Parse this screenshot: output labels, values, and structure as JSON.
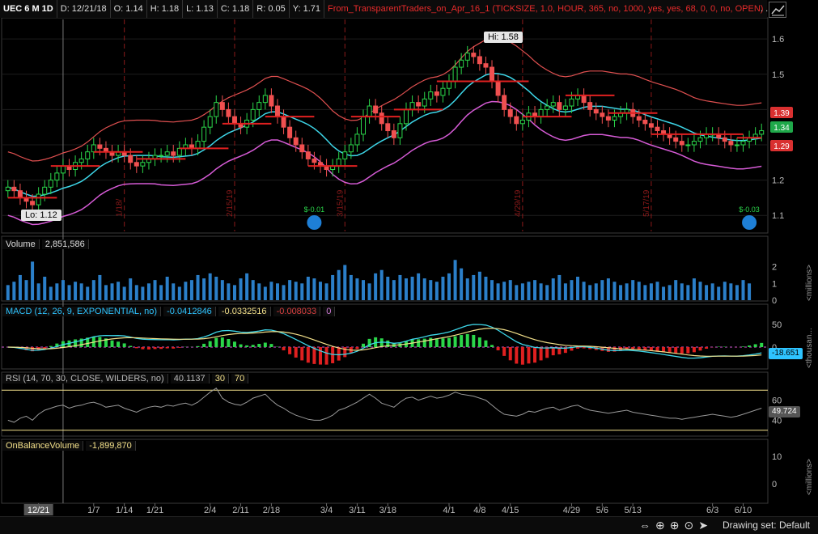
{
  "header": {
    "symbol": "UEC 6 M 1D",
    "date": "D: 12/21/18",
    "open": "O: 1.14",
    "high": "H: 1.18",
    "low": "L: 1.13",
    "close": "C: 1.18",
    "range": "R: 0.05",
    "y": "Y: 1.71",
    "strategy": "From_TransparentTraders_on_Apr_16_1 (TICKSIZE, 1.0, HOUR, 365, no, 1000, yes, yes, 68, 0, 0, no, OPEN)",
    "more": ". ."
  },
  "price_panel": {
    "hi_label": "Hi: 1.58",
    "lo_label": "Lo: 1.12",
    "price_ticks": [
      "1.6",
      "1.5",
      "1.4",
      "1.3",
      "1.2",
      "1.1"
    ],
    "badges": [
      {
        "text": "1.39",
        "color": "#d93030"
      },
      {
        "text": "1.34",
        "color": "#1fa84a"
      },
      {
        "text": "1.29",
        "color": "#d93030"
      }
    ],
    "vlines": [
      {
        "label": "1/18/",
        "idx": 19
      },
      {
        "label": "2/15/19",
        "idx": 37
      },
      {
        "label": "3/15/19",
        "idx": 55
      },
      {
        "label": "4/29/19",
        "idx": 84
      },
      {
        "label": "5/17/19",
        "idx": 105
      }
    ],
    "earnings": [
      {
        "text": "$-0.01",
        "idx": 50
      },
      {
        "text": "$-0.03",
        "idx": 121
      }
    ],
    "lo_date_mark": "18"
  },
  "volume_panel": {
    "title": "Volume",
    "value": "2,851,586",
    "ticks": [
      "2",
      "1",
      "0"
    ],
    "unit": "<millions>"
  },
  "macd_panel": {
    "title": "MACD (12, 26, 9, EXPONENTIAL, no)",
    "value": "-0.0412846",
    "avg": "-0.0332516",
    "diff": "-0.008033",
    "zero": "0",
    "ticks": [
      "50",
      "0"
    ],
    "badge": "-18.651",
    "unit": "<thousan..."
  },
  "rsi_panel": {
    "title": "RSI (14, 70, 30, CLOSE, WILDERS, no)",
    "value": "40.1137",
    "low": "30",
    "high": "70",
    "ticks": [
      "60",
      "40"
    ],
    "badge": "49.724"
  },
  "obv_panel": {
    "title": "OnBalanceVolume",
    "value": "-1,899,870",
    "ticks": [
      "10",
      "0"
    ],
    "unit": "<millions>"
  },
  "xaxis": {
    "labels": [
      {
        "t": "12/21",
        "i": 5
      },
      {
        "t": "1/7",
        "i": 14
      },
      {
        "t": "1/14",
        "i": 19
      },
      {
        "t": "1/21",
        "i": 24
      },
      {
        "t": "2/4",
        "i": 33
      },
      {
        "t": "2/11",
        "i": 38
      },
      {
        "t": "2/18",
        "i": 43
      },
      {
        "t": "3/4",
        "i": 52
      },
      {
        "t": "3/11",
        "i": 57
      },
      {
        "t": "3/18",
        "i": 62
      },
      {
        "t": "4/1",
        "i": 72
      },
      {
        "t": "4/8",
        "i": 77
      },
      {
        "t": "4/15",
        "i": 82
      },
      {
        "t": "4/29",
        "i": 92
      },
      {
        "t": "5/6",
        "i": 97
      },
      {
        "t": "5/13",
        "i": 102
      },
      {
        "t": "6/3",
        "i": 115
      },
      {
        "t": "6/10",
        "i": 120
      }
    ]
  },
  "footer": {
    "drawing_set": "Drawing set: Default"
  },
  "chart_data": {
    "type": "line",
    "closes": [
      1.18,
      1.17,
      1.15,
      1.14,
      1.13,
      1.16,
      1.18,
      1.2,
      1.22,
      1.24,
      1.23,
      1.25,
      1.26,
      1.28,
      1.3,
      1.29,
      1.28,
      1.27,
      1.28,
      1.27,
      1.25,
      1.24,
      1.25,
      1.26,
      1.27,
      1.27,
      1.28,
      1.27,
      1.29,
      1.3,
      1.29,
      1.31,
      1.35,
      1.38,
      1.42,
      1.4,
      1.38,
      1.36,
      1.35,
      1.37,
      1.4,
      1.42,
      1.44,
      1.41,
      1.38,
      1.35,
      1.32,
      1.3,
      1.28,
      1.26,
      1.25,
      1.24,
      1.23,
      1.24,
      1.26,
      1.28,
      1.3,
      1.33,
      1.38,
      1.41,
      1.39,
      1.36,
      1.34,
      1.32,
      1.36,
      1.4,
      1.42,
      1.41,
      1.43,
      1.45,
      1.44,
      1.46,
      1.48,
      1.52,
      1.54,
      1.56,
      1.55,
      1.53,
      1.52,
      1.48,
      1.44,
      1.4,
      1.38,
      1.36,
      1.37,
      1.39,
      1.38,
      1.4,
      1.41,
      1.42,
      1.4,
      1.41,
      1.43,
      1.44,
      1.42,
      1.4,
      1.39,
      1.38,
      1.37,
      1.38,
      1.39,
      1.4,
      1.38,
      1.37,
      1.36,
      1.35,
      1.34,
      1.33,
      1.32,
      1.31,
      1.3,
      1.3,
      1.31,
      1.32,
      1.33,
      1.33,
      1.32,
      1.31,
      1.3,
      1.3,
      1.31,
      1.32,
      1.33,
      1.34
    ],
    "volume_millions": [
      0.9,
      1.1,
      1.5,
      1.2,
      2.3,
      1.0,
      1.4,
      0.8,
      1.0,
      1.2,
      0.9,
      1.1,
      1.0,
      0.8,
      1.2,
      1.5,
      0.9,
      1.0,
      1.1,
      0.8,
      1.3,
      0.9,
      0.8,
      1.0,
      1.2,
      0.9,
      1.4,
      1.0,
      0.8,
      1.1,
      1.2,
      1.5,
      1.3,
      1.6,
      1.4,
      1.2,
      1.0,
      0.9,
      1.3,
      1.6,
      1.2,
      1.0,
      0.8,
      1.1,
      1.0,
      0.9,
      1.2,
      1.1,
      1.0,
      1.4,
      1.3,
      1.1,
      1.0,
      1.5,
      1.8,
      2.1,
      1.5,
      1.3,
      1.2,
      1.0,
      1.6,
      1.8,
      1.4,
      1.2,
      1.5,
      1.3,
      1.4,
      1.6,
      1.3,
      1.2,
      1.1,
      1.4,
      1.6,
      2.4,
      1.9,
      1.3,
      1.5,
      1.7,
      1.4,
      1.2,
      1.0,
      1.1,
      1.2,
      0.9,
      1.0,
      1.1,
      1.2,
      1.0,
      0.9,
      1.3,
      1.5,
      1.0,
      1.2,
      1.4,
      1.1,
      0.9,
      1.0,
      1.2,
      1.3,
      1.1,
      0.9,
      1.0,
      1.2,
      1.1,
      0.9,
      1.0,
      1.1,
      0.8,
      0.9,
      1.2,
      1.0,
      0.9,
      1.3,
      1.1,
      0.9,
      1.0,
      0.8,
      1.1,
      1.0,
      0.9,
      1.2,
      1.0
    ],
    "volume_ylim": [
      0,
      2.8
    ],
    "rsi": [
      40,
      38,
      42,
      44,
      40,
      46,
      50,
      52,
      54,
      55,
      52,
      54,
      55,
      57,
      58,
      56,
      53,
      54,
      55,
      52,
      50,
      48,
      51,
      53,
      54,
      53,
      55,
      54,
      56,
      57,
      55,
      58,
      63,
      68,
      72,
      62,
      58,
      56,
      55,
      58,
      62,
      64,
      66,
      60,
      55,
      52,
      48,
      45,
      43,
      41,
      40,
      40,
      42,
      45,
      50,
      52,
      55,
      58,
      62,
      66,
      62,
      57,
      55,
      53,
      58,
      62,
      63,
      60,
      62,
      64,
      62,
      63,
      65,
      68,
      66,
      65,
      64,
      62,
      60,
      55,
      50,
      46,
      45,
      44,
      46,
      49,
      48,
      50,
      52,
      53,
      50,
      52,
      54,
      55,
      52,
      50,
      49,
      48,
      47,
      48,
      49,
      50,
      48,
      47,
      46,
      45,
      44,
      43,
      42,
      42,
      41,
      42,
      43,
      44,
      45,
      46,
      45,
      44,
      43,
      44,
      46,
      48,
      50,
      52
    ],
    "rsi_ylim": [
      25,
      75
    ],
    "ylim": [
      1.05,
      1.66
    ]
  }
}
